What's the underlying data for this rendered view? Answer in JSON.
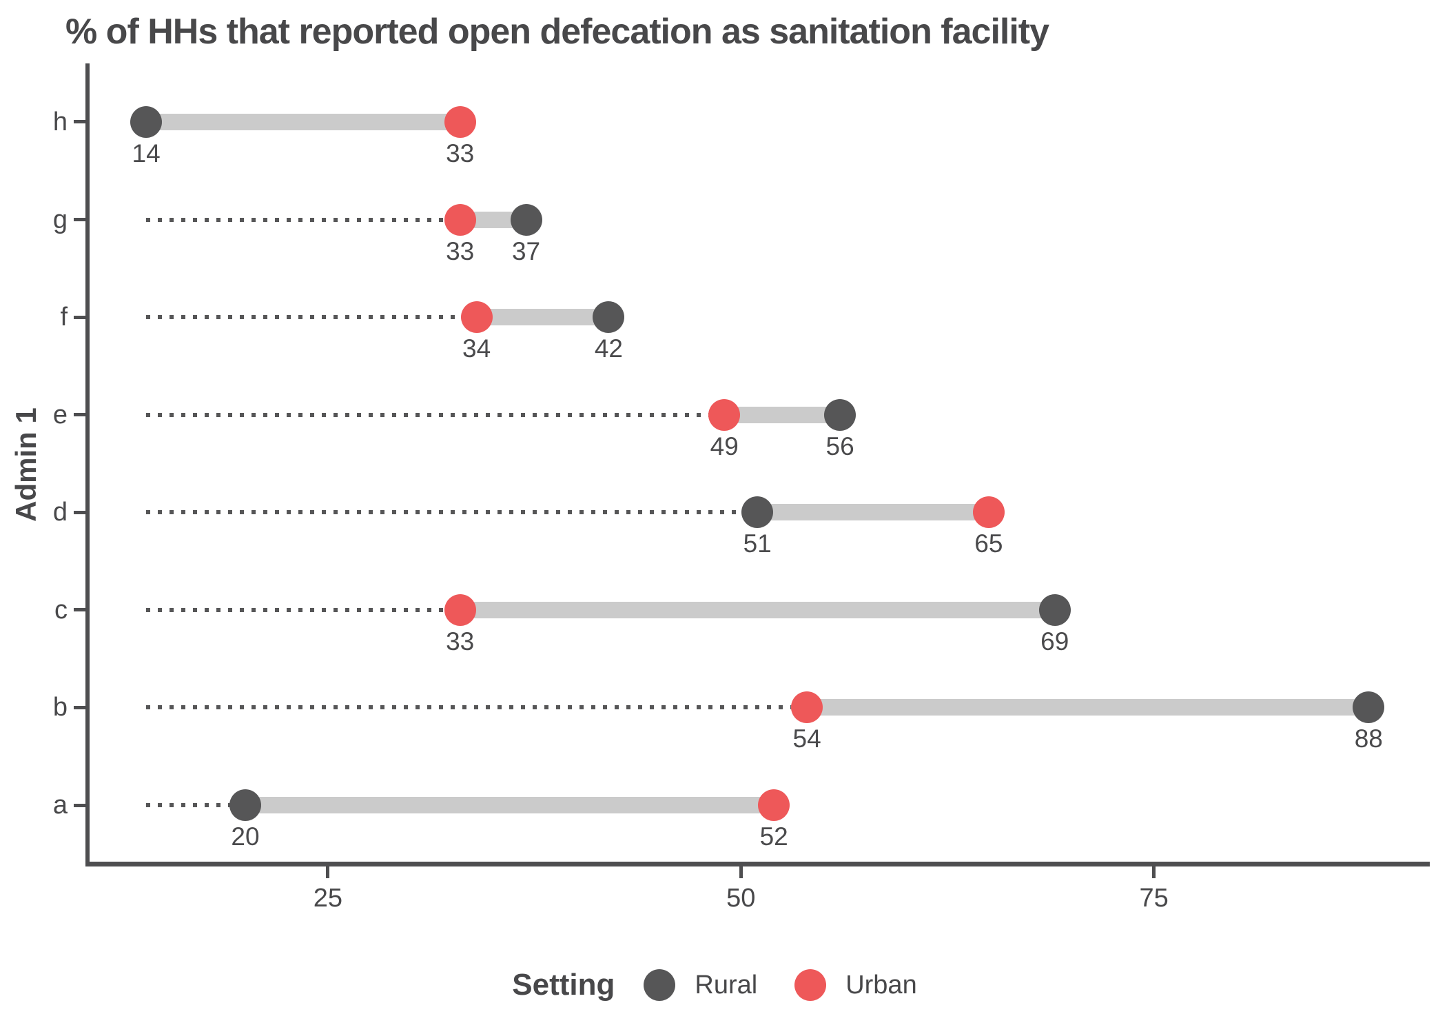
{
  "title": "% of HHs that reported open defecation as sanitation facility",
  "y_axis_title": "Admin 1",
  "legend": {
    "title": "Setting",
    "items": [
      {
        "label": "Rural",
        "color": "#565657"
      },
      {
        "label": "Urban",
        "color": "#ee5859"
      }
    ]
  },
  "colors": {
    "rural": "#565657",
    "urban": "#ee5859",
    "connector": "#cbcbcb",
    "leader": "#565657",
    "axis": "#4e4e50",
    "text": "#48484a"
  },
  "chart_data": {
    "type": "dumbbell",
    "title": "% of HHs that reported open defecation as sanitation facility",
    "ylabel": "Admin 1",
    "xlabel": "",
    "categories": [
      "h",
      "g",
      "f",
      "e",
      "d",
      "c",
      "b",
      "a"
    ],
    "series": [
      {
        "name": "Rural",
        "color": "#565657",
        "values": [
          14,
          37,
          42,
          56,
          51,
          69,
          88,
          20
        ]
      },
      {
        "name": "Urban",
        "color": "#ee5859",
        "values": [
          33,
          33,
          34,
          49,
          65,
          33,
          54,
          52
        ]
      }
    ],
    "point_labels_shown": true,
    "x_ticks": [
      25,
      50,
      75
    ],
    "x_range": [
      10.45,
      91.7
    ],
    "leader_line_start": 14,
    "grid": "off",
    "legend_position": "bottom"
  }
}
